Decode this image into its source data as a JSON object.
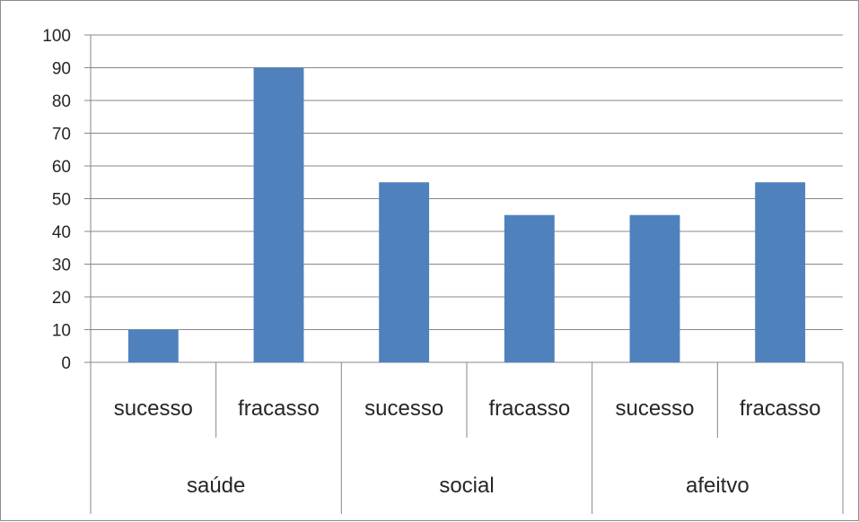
{
  "chart_data": {
    "type": "bar",
    "groups": [
      {
        "label": "saúde",
        "categories": [
          "sucesso",
          "fracasso"
        ],
        "values": [
          10,
          90
        ]
      },
      {
        "label": "social",
        "categories": [
          "sucesso",
          "fracasso"
        ],
        "values": [
          55,
          45
        ]
      },
      {
        "label": "afeitvo",
        "categories": [
          "sucesso",
          "fracasso"
        ],
        "values": [
          45,
          55
        ]
      }
    ],
    "yticks": [
      "0",
      "10",
      "20",
      "30",
      "40",
      "50",
      "60",
      "70",
      "80",
      "90",
      "100"
    ],
    "ylim": [
      0,
      100
    ],
    "grid": true,
    "legend": "none",
    "bar_color": "#4f81bd",
    "grid_color": "#878787"
  }
}
